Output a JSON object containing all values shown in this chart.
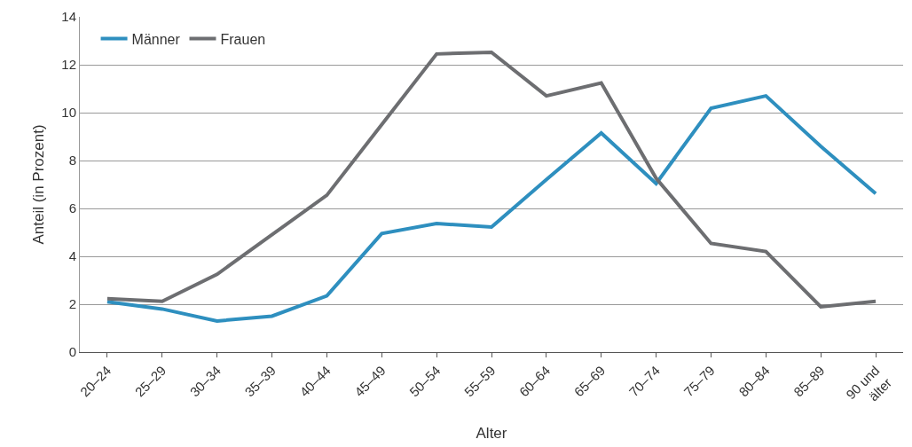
{
  "chart_data": {
    "type": "line",
    "xlabel": "Alter",
    "ylabel": "Anteil (in Prozent)",
    "categories": [
      "20–24",
      "25–29",
      "30–34",
      "35–39",
      "40–44",
      "45–49",
      "50–54",
      "55–59",
      "60–64",
      "65–69",
      "70–74",
      "75–79",
      "80–84",
      "85–89",
      "90 und\nälter"
    ],
    "series": [
      {
        "name": "Männer",
        "color": "#2e8fbf",
        "values": [
          2.1,
          1.8,
          1.3,
          1.5,
          2.35,
          4.95,
          5.37,
          5.22,
          7.2,
          9.15,
          7.04,
          10.18,
          10.7,
          8.59,
          6.62
        ]
      },
      {
        "name": "Frauen",
        "color": "#6d6e71",
        "values": [
          2.23,
          2.12,
          3.25,
          4.9,
          6.55,
          9.5,
          12.45,
          12.52,
          10.7,
          11.24,
          7.26,
          4.54,
          4.2,
          1.89,
          2.12
        ]
      }
    ],
    "ylim": [
      0,
      14
    ],
    "yticks": [
      0,
      2,
      4,
      6,
      8,
      10,
      12,
      14
    ],
    "grid": "y",
    "legend": "top left",
    "marker": "none",
    "line_style": "solid"
  }
}
